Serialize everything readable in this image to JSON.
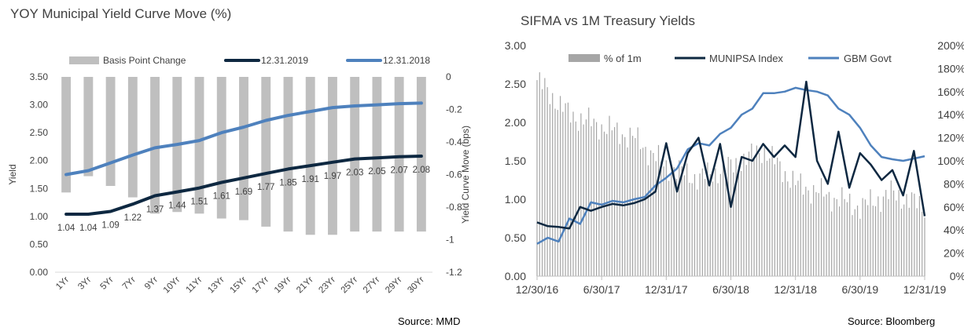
{
  "chart_data": [
    {
      "type": "bar+line",
      "title": "YOY Municipal Yield Curve Move (%)",
      "ylabel": "Yield",
      "y2label": "Yield Curve Move (bps)",
      "ylim": [
        0,
        3.5
      ],
      "y2lim": [
        -1.2,
        0
      ],
      "yticks": [
        "3.50",
        "3.00",
        "2.50",
        "2.00",
        "1.50",
        "1.00",
        "0.50",
        "0.00"
      ],
      "y2ticks": [
        "0",
        "-0.2",
        "-0.4",
        "-0.6",
        "-0.8",
        "-1",
        "-1.2"
      ],
      "categories": [
        "1Yr",
        "3Yr",
        "5Yr",
        "7Yr",
        "9Yr",
        "10Yr",
        "11Yr",
        "13Yr",
        "15Yr",
        "17Yr",
        "19Yr",
        "21Yr",
        "23Yr",
        "25Yr",
        "27Yr",
        "29Yr",
        "30Yr"
      ],
      "legend": [
        "Basis Point Change",
        "12.31.2019",
        "12.31.2018"
      ],
      "legend_position": "top",
      "series": [
        {
          "name": "Basis Point Change",
          "kind": "bar",
          "axis": "right",
          "color": "#bfbfbf",
          "values": [
            -0.71,
            -0.61,
            -0.67,
            -0.74,
            -0.84,
            -0.83,
            -0.84,
            -0.87,
            -0.88,
            -0.92,
            -0.95,
            -0.97,
            -0.97,
            -0.95,
            -0.95,
            -0.95,
            -0.95
          ]
        },
        {
          "name": "12.31.2019",
          "kind": "line",
          "axis": "left",
          "color": "#0e2841",
          "values": [
            1.04,
            1.04,
            1.09,
            1.22,
            1.37,
            1.44,
            1.51,
            1.61,
            1.69,
            1.77,
            1.85,
            1.91,
            1.97,
            2.03,
            2.05,
            2.07,
            2.08
          ],
          "labels": [
            "1.04",
            "1.04",
            "1.09",
            "1.22",
            "1.37",
            "1.44",
            "1.51",
            "1.61",
            "1.69",
            "1.77",
            "1.85",
            "1.91",
            "1.97",
            "2.03",
            "2.05",
            "2.07",
            "2.08"
          ]
        },
        {
          "name": "12.31.2018",
          "kind": "line",
          "axis": "left",
          "color": "#4e81bd",
          "values": [
            1.75,
            1.82,
            1.96,
            2.1,
            2.23,
            2.29,
            2.36,
            2.5,
            2.6,
            2.72,
            2.81,
            2.88,
            2.95,
            2.98,
            3.0,
            3.02,
            3.03
          ]
        }
      ],
      "source": "Source: MMD"
    },
    {
      "type": "bar+line",
      "title": "SIFMA vs 1M Treasury Yields",
      "ylim": [
        0,
        3.0
      ],
      "y2lim": [
        0,
        200
      ],
      "yticks": [
        "3.00",
        "2.50",
        "2.00",
        "1.50",
        "1.00",
        "0.50",
        "0.00"
      ],
      "y2ticks": [
        "200%",
        "180%",
        "160%",
        "140%",
        "120%",
        "100%",
        "80%",
        "60%",
        "40%",
        "20%",
        "0%"
      ],
      "xticks": [
        "12/30/16",
        "6/30/17",
        "12/31/17",
        "6/30/18",
        "12/31/18",
        "6/30/19",
        "12/31/19"
      ],
      "legend": [
        "% of 1m",
        "MUNIPSA Index",
        "GBM Govt"
      ],
      "legend_position": "top",
      "series": [
        {
          "name": "% of 1m",
          "kind": "bar",
          "axis": "right",
          "color": "#a6a6a6",
          "x": [
            0,
            3,
            6,
            9,
            12,
            15,
            18,
            21,
            24,
            27,
            30,
            33,
            36
          ],
          "values": [
            170,
            140,
            130,
            120,
            95,
            85,
            95,
            110,
            80,
            70,
            60,
            72,
            60
          ]
        },
        {
          "name": "MUNIPSA Index",
          "kind": "line",
          "axis": "left",
          "color": "#0e2841",
          "x": [
            0,
            1,
            2,
            3,
            4,
            5,
            6,
            7,
            8,
            9,
            10,
            11,
            12,
            13,
            14,
            15,
            16,
            17,
            18,
            19,
            20,
            21,
            22,
            23,
            24,
            25,
            26,
            27,
            28,
            29,
            30,
            31,
            32,
            33,
            34,
            35,
            36
          ],
          "values": [
            0.7,
            0.65,
            0.64,
            0.62,
            0.9,
            0.85,
            0.9,
            0.94,
            0.92,
            0.95,
            1.0,
            1.1,
            1.73,
            1.1,
            1.6,
            1.8,
            1.18,
            1.72,
            0.9,
            1.55,
            1.5,
            1.72,
            1.55,
            1.7,
            1.55,
            2.53,
            1.5,
            1.2,
            1.88,
            1.15,
            1.6,
            1.45,
            1.25,
            1.38,
            1.05,
            1.63,
            0.78
          ]
        },
        {
          "name": "GBM Govt",
          "kind": "line",
          "axis": "left",
          "color": "#4e81bd",
          "x": [
            0,
            1,
            2,
            3,
            4,
            5,
            6,
            7,
            8,
            9,
            10,
            11,
            12,
            13,
            14,
            15,
            16,
            17,
            18,
            19,
            20,
            21,
            22,
            23,
            24,
            25,
            26,
            27,
            28,
            29,
            30,
            31,
            32,
            33,
            34,
            35,
            36
          ],
          "values": [
            0.42,
            0.5,
            0.45,
            0.75,
            0.68,
            0.96,
            0.93,
            0.98,
            0.96,
            1.0,
            1.03,
            1.18,
            1.28,
            1.4,
            1.65,
            1.73,
            1.7,
            1.85,
            1.93,
            2.1,
            2.18,
            2.38,
            2.38,
            2.4,
            2.45,
            2.42,
            2.4,
            2.35,
            2.18,
            2.1,
            1.93,
            1.7,
            1.55,
            1.52,
            1.5,
            1.53,
            1.56
          ]
        }
      ],
      "source": "Source: Bloomberg"
    }
  ]
}
